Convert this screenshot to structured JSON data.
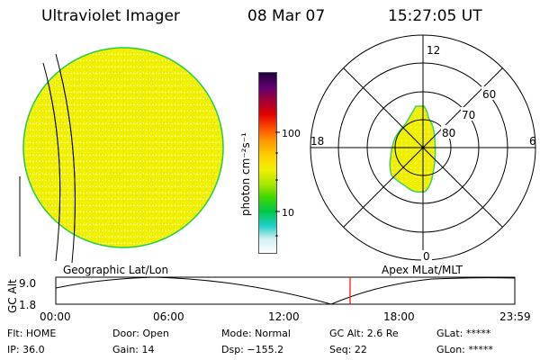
{
  "header": {
    "instrument": "Ultraviolet Imager",
    "date": "08 Mar 07",
    "time": "15:27:05 UT"
  },
  "colorbar": {
    "label": "photon cm⁻²s⁻¹",
    "ticks": [
      "100",
      "10"
    ],
    "colors": [
      "#ffffff",
      "#cfeef0",
      "#1fd0c8",
      "#00c848",
      "#40d800",
      "#a8e800",
      "#f0f000",
      "#ffd000",
      "#ff9a00",
      "#ff5000",
      "#e00000",
      "#a0003a",
      "#600070",
      "#200040"
    ]
  },
  "left_image": {
    "caption": "Geographic Lat/Lon",
    "fill_color": "#f0f000",
    "edge_color": "#22cc44"
  },
  "polar_plot": {
    "caption": "Apex MLat/MLT",
    "mlt_labels": {
      "top": "12",
      "bottom": "0",
      "left": "18",
      "right": "6"
    },
    "mlat_labels": [
      "60",
      "70",
      "80"
    ]
  },
  "altitude_panel": {
    "ylabel": "GC Alt",
    "yticks": [
      "9.0",
      "1.8"
    ],
    "xticks": [
      "00:00",
      "06:00",
      "12:00",
      "18:00",
      "23:59"
    ],
    "marker_color": "#ff0000"
  },
  "status": {
    "flt": "Flt: HOME",
    "ip": "IP: 36.0",
    "door": "Door: Open",
    "gain": "Gain: 14",
    "mode": "Mode: Normal",
    "dsp": "Dsp: −155.2",
    "gc_alt": "GC Alt: 2.6 Re",
    "seq": "Seq: 22",
    "glat": "GLat: *****",
    "glon": "GLon: *****"
  }
}
